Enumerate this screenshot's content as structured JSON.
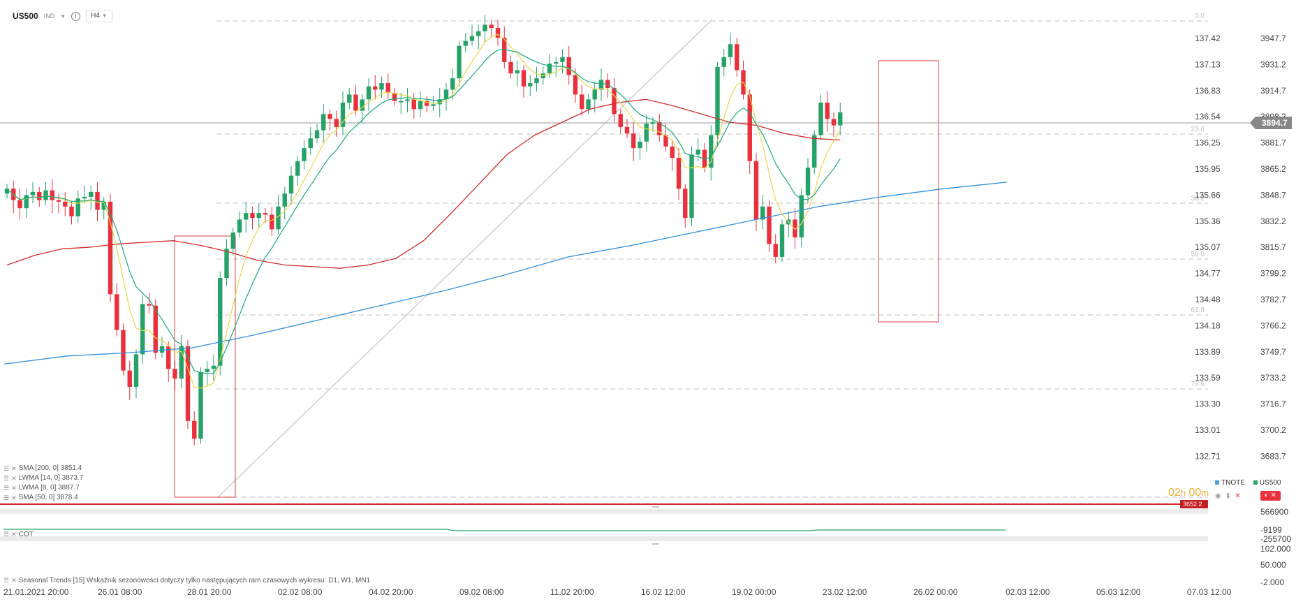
{
  "header": {
    "symbol": "US500",
    "market": "IND",
    "timeframe": "H4"
  },
  "price_axis": {
    "left_labels": [
      "137.42",
      "137.13",
      "136.83",
      "136.54",
      "136.25",
      "135.95",
      "135.66",
      "135.36",
      "135.07",
      "134.77",
      "134.48",
      "134.18",
      "133.89",
      "133.59",
      "133.30",
      "133.01",
      "132.71"
    ],
    "right_labels": [
      "3947.7",
      "3931.2",
      "3914.7",
      "3898.2",
      "3881.7",
      "3865.2",
      "3848.7",
      "3832.2",
      "3815.7",
      "3799.2",
      "3782.7",
      "3766.2",
      "3749.7",
      "3733.2",
      "3716.7",
      "3700.2",
      "3683.7"
    ],
    "current_price": "3894.7",
    "lower_price": "3652.2"
  },
  "fib_labels": [
    "0.0",
    "23.6",
    "38.2",
    "50.0",
    "61.8",
    "78.6"
  ],
  "time_axis": [
    "21.01.2021  20:00",
    "26.01  08:00",
    "28.01  20:00",
    "02.02  08:00",
    "04.02  20:00",
    "09.02  08:00",
    "11.02  20:00",
    "16.02  12:00",
    "19.02  00:00",
    "23.02  12:00",
    "26.02  00:00",
    "02.03  12:00",
    "05.03  12:00",
    "07.03  12:00"
  ],
  "indicators": [
    "SMA  [200,  0]  3851.4",
    "LWMA  [14,  0]  3873.7",
    "LWMA  [8,  0]  3887.7",
    "SMA  [50,  0]  3878.4"
  ],
  "cot_panel": {
    "label": "COT",
    "axis": [
      "566900",
      "-9199",
      "-255700"
    ]
  },
  "seasonal_panel": {
    "label": "Seasonal Trends [15] Wskaźnik sezonowości dotyczy tylko następujących ram czasowych wykresu: D1, W1, MN1",
    "axis": [
      "102.000",
      "50.000",
      "-2.000"
    ]
  },
  "side_panel": {
    "tnote": "TNOTE",
    "us500": "US500"
  },
  "timer": {
    "hours": "02",
    "h": "h",
    "minutes": "00",
    "m": "m"
  },
  "colors": {
    "bull": "#26a269",
    "bear": "#e9303c",
    "sma200": "#2f8fe0",
    "sma50": "#d42a2a",
    "lwma8": "#e8d84a",
    "lwma14": "#1aaa78",
    "fib": "#cccccc",
    "box": "#d94040"
  },
  "chart_data": {
    "type": "candlestick",
    "timeframe": "H4",
    "ylim": [
      3664,
      3956
    ],
    "close_series": [
      3847,
      3840,
      3835,
      3843,
      3845,
      3840,
      3846,
      3840,
      3839,
      3836,
      3830,
      3841,
      3842,
      3845,
      3834,
      3839,
      3782,
      3760,
      3735,
      3725,
      3745,
      3776,
      3775,
      3746,
      3750,
      3736,
      3730,
      3750,
      3704,
      3693,
      3734,
      3736,
      3738,
      3792,
      3810,
      3820,
      3828,
      3832,
      3829,
      3832,
      3831,
      3822,
      3836,
      3844,
      3855,
      3864,
      3872,
      3878,
      3883,
      3893,
      3890,
      3885,
      3900,
      3905,
      3895,
      3902,
      3910,
      3908,
      3912,
      3906,
      3901,
      3901,
      3902,
      3896,
      3901,
      3898,
      3899,
      3902,
      3908,
      3915,
      3935,
      3938,
      3941,
      3944,
      3948,
      3946,
      3940,
      3925,
      3918,
      3920,
      3910,
      3912,
      3915,
      3918,
      3924,
      3925,
      3928,
      3917,
      3905,
      3896,
      3902,
      3908,
      3914,
      3909,
      3893,
      3885,
      3881,
      3872,
      3876,
      3887,
      3888,
      3880,
      3873,
      3866,
      3847,
      3829,
      3868,
      3871,
      3860,
      3880,
      3922,
      3928,
      3936,
      3920,
      3905,
      3864,
      3828,
      3836,
      3813,
      3805,
      3825,
      3828,
      3817,
      3843,
      3860,
      3880,
      3900,
      3890,
      3886,
      3894
    ],
    "sma50": [
      3800,
      3806,
      3810,
      3811,
      3813,
      3814,
      3815,
      3812,
      3808,
      3803,
      3800,
      3799,
      3798,
      3800,
      3804,
      3815,
      3832,
      3850,
      3868,
      3880,
      3888,
      3896,
      3900,
      3902,
      3898,
      3893,
      3888,
      3886,
      3881,
      3878,
      3877
    ],
    "sma200": [
      3739,
      3744,
      3746,
      3749,
      3757,
      3766,
      3775,
      3784,
      3794,
      3805,
      3812,
      3820,
      3828,
      3836,
      3842,
      3847,
      3851
    ]
  }
}
